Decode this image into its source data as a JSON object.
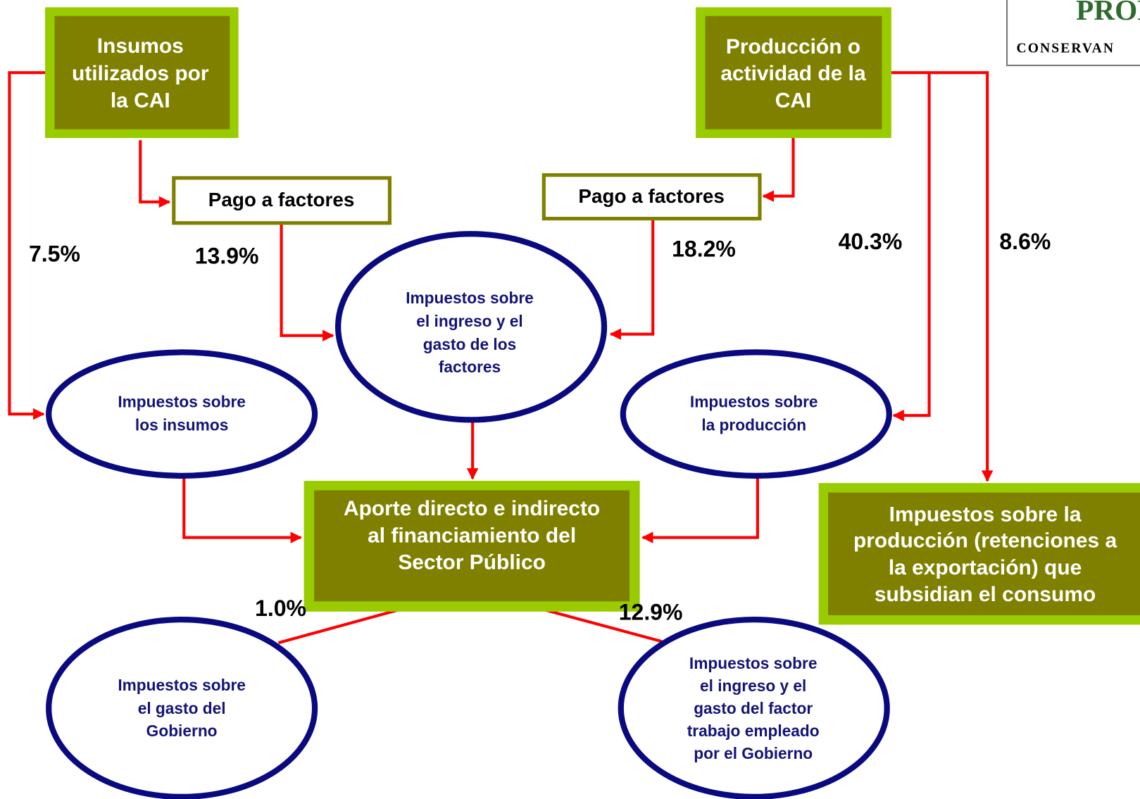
{
  "logo": {
    "lines": [
      "PRODUC",
      "CONSERVAN"
    ]
  },
  "nodes": [
    {
      "lines": [
        "Insumos",
        "utilizados por",
        "la CAI"
      ]
    },
    {
      "lines": [
        "Producción o",
        "actividad de la",
        "CAI"
      ]
    },
    {
      "lines": [
        "Pago a factores"
      ]
    },
    {
      "lines": [
        "Pago a factores"
      ]
    },
    {
      "lines": [
        "Impuestos sobre",
        "el ingreso y el",
        "gasto de los",
        "factores"
      ]
    },
    {
      "lines": [
        "Impuestos sobre",
        "los insumos"
      ]
    },
    {
      "lines": [
        "Impuestos sobre",
        "la producción"
      ]
    },
    {
      "lines": [
        "Aporte directo e indirecto",
        "al financiamiento del",
        "Sector Público"
      ]
    },
    {
      "lines": [
        "Impuestos sobre la",
        "producción (retenciones a",
        "la exportación) que",
        "subsidian el consumo"
      ]
    },
    {
      "lines": [
        "Impuestos sobre",
        "el gasto del",
        "Gobierno"
      ]
    },
    {
      "lines": [
        "Impuestos sobre",
        "el ingreso y el",
        "gasto del factor",
        "trabajo empleado",
        "por el Gobierno"
      ]
    }
  ],
  "edge_labels": [
    "7.5%",
    "13.9%",
    "18.2%",
    "40.3%",
    "8.6%",
    "1.0%",
    "12.9%"
  ]
}
